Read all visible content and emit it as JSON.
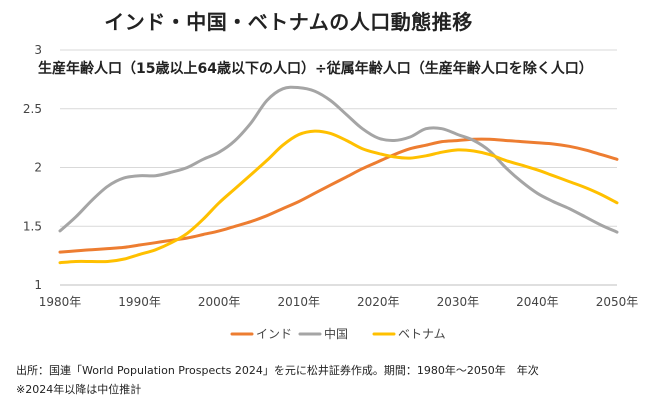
{
  "footer": {
    "source": "出所：国連「World Population Prospects 2024」を元に松井証券作成。期間：1980年～2050年　年次",
    "note": "※2024年以降は中位推計"
  },
  "chart_data": {
    "type": "line",
    "title": "インド・中国・ベトナムの人口動態推移",
    "subtitle": "生産年齢人口（15歳以上64歳以下の人口）÷従属年齢人口（生産年齢人口を除く人口）",
    "xlabel": "",
    "ylabel": "",
    "xlim": [
      1980,
      2050
    ],
    "ylim": [
      1,
      3
    ],
    "yticks": [
      "1",
      "1.5",
      "2",
      "2.5",
      "3"
    ],
    "xticks": [
      "1980年",
      "1990年",
      "2000年",
      "2010年",
      "2020年",
      "2030年",
      "2040年",
      "2050年"
    ],
    "legend_position": "bottom",
    "series": [
      {
        "name": "インド",
        "color": "#ED7D31",
        "x": [
          1980,
          1982,
          1984,
          1986,
          1988,
          1990,
          1992,
          1994,
          1996,
          1998,
          2000,
          2002,
          2004,
          2006,
          2008,
          2010,
          2012,
          2014,
          2016,
          2018,
          2020,
          2022,
          2024,
          2026,
          2028,
          2030,
          2032,
          2034,
          2036,
          2038,
          2040,
          2042,
          2044,
          2046,
          2048,
          2050
        ],
        "values": [
          1.28,
          1.29,
          1.3,
          1.31,
          1.32,
          1.34,
          1.36,
          1.38,
          1.4,
          1.43,
          1.46,
          1.5,
          1.54,
          1.59,
          1.65,
          1.71,
          1.78,
          1.85,
          1.92,
          1.99,
          2.05,
          2.11,
          2.16,
          2.19,
          2.22,
          2.23,
          2.24,
          2.24,
          2.23,
          2.22,
          2.21,
          2.2,
          2.18,
          2.15,
          2.11,
          2.07
        ]
      },
      {
        "name": "中国",
        "color": "#A5A5A5",
        "x": [
          1980,
          1982,
          1984,
          1986,
          1988,
          1990,
          1992,
          1994,
          1996,
          1998,
          2000,
          2002,
          2004,
          2006,
          2008,
          2010,
          2012,
          2014,
          2016,
          2018,
          2020,
          2022,
          2024,
          2026,
          2028,
          2030,
          2032,
          2034,
          2036,
          2038,
          2040,
          2042,
          2044,
          2046,
          2048,
          2050
        ],
        "values": [
          1.46,
          1.58,
          1.72,
          1.84,
          1.91,
          1.93,
          1.93,
          1.96,
          2.0,
          2.07,
          2.13,
          2.23,
          2.38,
          2.57,
          2.67,
          2.68,
          2.65,
          2.57,
          2.45,
          2.33,
          2.25,
          2.23,
          2.26,
          2.33,
          2.33,
          2.28,
          2.23,
          2.14,
          2.0,
          1.88,
          1.78,
          1.71,
          1.65,
          1.58,
          1.51,
          1.45
        ]
      },
      {
        "name": "ベトナム",
        "color": "#FFC000",
        "x": [
          1980,
          1982,
          1984,
          1986,
          1988,
          1990,
          1992,
          1994,
          1996,
          1998,
          2000,
          2002,
          2004,
          2006,
          2008,
          2010,
          2012,
          2014,
          2016,
          2018,
          2020,
          2022,
          2024,
          2026,
          2028,
          2030,
          2032,
          2034,
          2036,
          2038,
          2040,
          2042,
          2044,
          2046,
          2048,
          2050
        ],
        "values": [
          1.19,
          1.2,
          1.2,
          1.2,
          1.22,
          1.26,
          1.3,
          1.36,
          1.44,
          1.56,
          1.7,
          1.82,
          1.94,
          2.06,
          2.19,
          2.28,
          2.31,
          2.29,
          2.23,
          2.16,
          2.12,
          2.09,
          2.08,
          2.1,
          2.13,
          2.15,
          2.14,
          2.11,
          2.06,
          2.02,
          1.98,
          1.93,
          1.88,
          1.83,
          1.77,
          1.7
        ]
      }
    ]
  }
}
